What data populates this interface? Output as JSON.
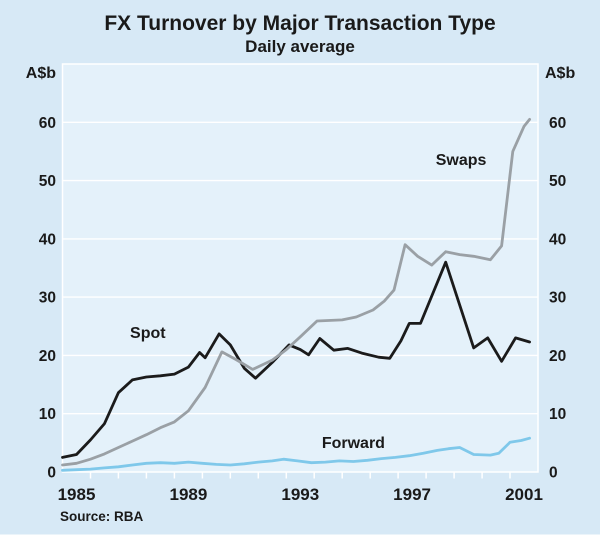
{
  "header": {
    "title": "FX Turnover by Major Transaction Type",
    "subtitle": "Daily average"
  },
  "footer": {
    "source": "Source: RBA"
  },
  "axis": {
    "unit_label_left": "A$b",
    "unit_label_right": "A$b",
    "y_ticks": [
      0,
      10,
      20,
      30,
      40,
      50,
      60
    ],
    "x_tick_labels": [
      {
        "label": "1985",
        "year": 1985
      },
      {
        "label": "1989",
        "year": 1989
      },
      {
        "label": "1993",
        "year": 1993
      },
      {
        "label": "1997",
        "year": 1997
      },
      {
        "label": "2001",
        "year": 2001
      }
    ]
  },
  "colors": {
    "page_background": "#d7e9f6",
    "plot_background": "#e4f1fa",
    "grid": "#ffffff",
    "text": "#1a1a1a",
    "spot": "#1b1b1b",
    "swaps": "#9aa0a5",
    "forward": "#7fc8ea",
    "bottom_edge": "#ffffff"
  },
  "chart_data": {
    "type": "line",
    "title": "FX Turnover by Major Transaction Type",
    "subtitle": "Daily average",
    "xlabel": "",
    "ylabel": "A$b",
    "xlim": [
      1984.5,
      2001.5
    ],
    "ylim": [
      0,
      70
    ],
    "grid": true,
    "legend": "inline-labels",
    "series": [
      {
        "name": "Spot",
        "color": "#1b1b1b",
        "label_pos": {
          "year": 1987.55,
          "value": 23.0
        },
        "points": [
          [
            1984.5,
            2.5
          ],
          [
            1985.0,
            3.0
          ],
          [
            1985.5,
            5.5
          ],
          [
            1986.0,
            8.3
          ],
          [
            1986.5,
            13.6
          ],
          [
            1987.0,
            15.8
          ],
          [
            1987.5,
            16.3
          ],
          [
            1988.0,
            16.5
          ],
          [
            1988.5,
            16.8
          ],
          [
            1989.0,
            18.0
          ],
          [
            1989.4,
            20.5
          ],
          [
            1989.6,
            19.6
          ],
          [
            1990.1,
            23.7
          ],
          [
            1990.5,
            21.8
          ],
          [
            1991.0,
            17.8
          ],
          [
            1991.4,
            16.1
          ],
          [
            1992.0,
            18.8
          ],
          [
            1992.6,
            21.8
          ],
          [
            1993.0,
            21.0
          ],
          [
            1993.3,
            20.1
          ],
          [
            1993.7,
            22.9
          ],
          [
            1994.2,
            20.9
          ],
          [
            1994.7,
            21.2
          ],
          [
            1995.2,
            20.4
          ],
          [
            1995.8,
            19.7
          ],
          [
            1996.2,
            19.5
          ],
          [
            1996.6,
            22.5
          ],
          [
            1996.9,
            25.5
          ],
          [
            1997.3,
            25.5
          ],
          [
            1998.2,
            36.0
          ],
          [
            1999.2,
            21.3
          ],
          [
            1999.7,
            23.0
          ],
          [
            2000.2,
            19.0
          ],
          [
            2000.7,
            23.0
          ],
          [
            2001.2,
            22.3
          ]
        ]
      },
      {
        "name": "Swaps",
        "color": "#9aa0a5",
        "label_pos": {
          "year": 1998.75,
          "value": 52.7
        },
        "points": [
          [
            1984.5,
            1.2
          ],
          [
            1985.0,
            1.5
          ],
          [
            1985.5,
            2.2
          ],
          [
            1986.0,
            3.1
          ],
          [
            1986.5,
            4.2
          ],
          [
            1987.0,
            5.3
          ],
          [
            1987.5,
            6.4
          ],
          [
            1988.0,
            7.6
          ],
          [
            1988.5,
            8.6
          ],
          [
            1989.0,
            10.5
          ],
          [
            1989.6,
            14.5
          ],
          [
            1990.2,
            20.6
          ],
          [
            1990.7,
            19.3
          ],
          [
            1991.3,
            17.6
          ],
          [
            1992.0,
            19.2
          ],
          [
            1992.5,
            21.0
          ],
          [
            1993.0,
            23.2
          ],
          [
            1993.6,
            25.9
          ],
          [
            1994.0,
            26.0
          ],
          [
            1994.5,
            26.1
          ],
          [
            1995.0,
            26.6
          ],
          [
            1995.6,
            27.8
          ],
          [
            1996.0,
            29.3
          ],
          [
            1996.35,
            31.2
          ],
          [
            1996.75,
            39.0
          ],
          [
            1997.2,
            37.0
          ],
          [
            1997.7,
            35.5
          ],
          [
            1998.2,
            37.8
          ],
          [
            1998.7,
            37.3
          ],
          [
            1999.2,
            37.0
          ],
          [
            1999.8,
            36.4
          ],
          [
            2000.2,
            38.8
          ],
          [
            2000.6,
            55.0
          ],
          [
            2001.0,
            59.3
          ],
          [
            2001.2,
            60.5
          ]
        ]
      },
      {
        "name": "Forward",
        "color": "#7fc8ea",
        "label_pos": {
          "year": 1994.9,
          "value": 4.1
        },
        "points": [
          [
            1984.5,
            0.3
          ],
          [
            1985.0,
            0.4
          ],
          [
            1985.5,
            0.5
          ],
          [
            1986.0,
            0.7
          ],
          [
            1986.5,
            0.9
          ],
          [
            1987.0,
            1.2
          ],
          [
            1987.5,
            1.5
          ],
          [
            1988.0,
            1.6
          ],
          [
            1988.5,
            1.5
          ],
          [
            1989.0,
            1.7
          ],
          [
            1989.5,
            1.5
          ],
          [
            1990.0,
            1.3
          ],
          [
            1990.5,
            1.2
          ],
          [
            1991.0,
            1.4
          ],
          [
            1991.5,
            1.7
          ],
          [
            1992.0,
            1.9
          ],
          [
            1992.4,
            2.2
          ],
          [
            1992.9,
            1.9
          ],
          [
            1993.4,
            1.6
          ],
          [
            1993.9,
            1.7
          ],
          [
            1994.4,
            1.9
          ],
          [
            1994.9,
            1.8
          ],
          [
            1995.4,
            2.0
          ],
          [
            1995.9,
            2.3
          ],
          [
            1996.4,
            2.5
          ],
          [
            1996.9,
            2.8
          ],
          [
            1997.4,
            3.2
          ],
          [
            1997.9,
            3.7
          ],
          [
            1998.3,
            4.0
          ],
          [
            1998.7,
            4.2
          ],
          [
            1999.2,
            3.0
          ],
          [
            1999.8,
            2.9
          ],
          [
            2000.1,
            3.2
          ],
          [
            2000.5,
            5.1
          ],
          [
            2000.9,
            5.4
          ],
          [
            2001.2,
            5.8
          ]
        ]
      }
    ]
  }
}
